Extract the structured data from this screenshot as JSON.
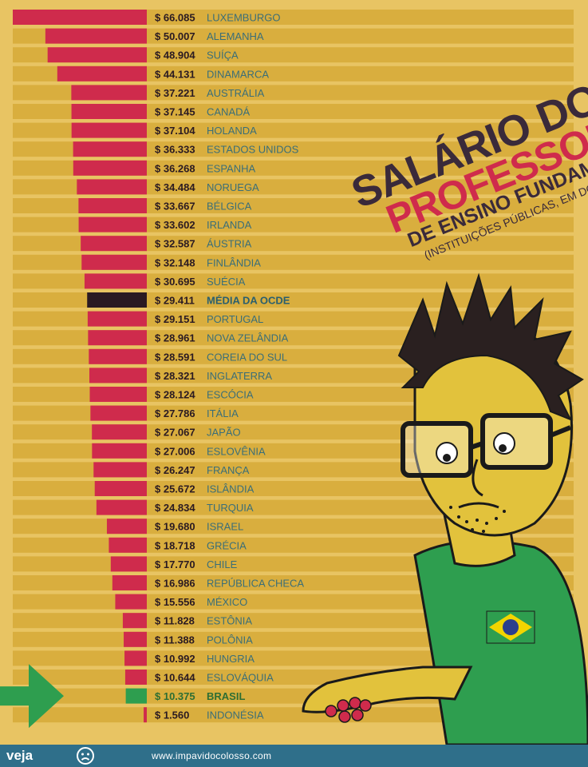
{
  "title": {
    "line1": "SALÁRIO DOS",
    "line2": "PROFESSORES",
    "line3": "DE ENSINO FUNDAMENTAL",
    "line4": "(INSTITUIÇÕES PÚBLICAS, EM DÓLARES, POR ANO)"
  },
  "footer": {
    "brand": "veja",
    "site": "www.impavidocolosso.com"
  },
  "colors": {
    "background": "#e8c463",
    "bar": "#cf2b4c",
    "highlight_ocde": "#2a1a22",
    "highlight_brasil": "#2e9e4f",
    "track": "#d9ae3e"
  },
  "chart_data": {
    "type": "bar",
    "orientation": "horizontal",
    "currency_prefix": "$",
    "categories": [
      "LUXEMBURGO",
      "ALEMANHA",
      "SUÍÇA",
      "DINAMARCA",
      "AUSTRÁLIA",
      "CANADÁ",
      "HOLANDA",
      "ESTADOS UNIDOS",
      "ESPANHA",
      "NORUEGA",
      "BÉLGICA",
      "IRLANDA",
      "ÁUSTRIA",
      "FINLÂNDIA",
      "SUÉCIA",
      "MÉDIA DA OCDE",
      "PORTUGAL",
      "NOVA ZELÂNDIA",
      "COREIA DO SUL",
      "INGLATERRA",
      "ESCÓCIA",
      "ITÁLIA",
      "JAPÃO",
      "ESLOVÊNIA",
      "FRANÇA",
      "ISLÂNDIA",
      "TURQUIA",
      "ISRAEL",
      "GRÉCIA",
      "CHILE",
      "REPÚBLICA CHECA",
      "MÉXICO",
      "ESTÔNIA",
      "POLÔNIA",
      "HUNGRIA",
      "ESLOVÁQUIA",
      "BRASIL",
      "INDONÉSIA"
    ],
    "values": [
      66085,
      50007,
      48904,
      44131,
      37221,
      37145,
      37104,
      36333,
      36268,
      34484,
      33667,
      33602,
      32587,
      32148,
      30695,
      29411,
      29151,
      28961,
      28591,
      28321,
      28124,
      27786,
      27067,
      27006,
      26247,
      25672,
      24834,
      19680,
      18718,
      17770,
      16986,
      15556,
      11828,
      11388,
      10992,
      10644,
      10375,
      1560
    ],
    "value_labels": [
      "66.085",
      "50.007",
      "48.904",
      "44.131",
      "37.221",
      "37.145",
      "37.104",
      "36.333",
      "36.268",
      "34.484",
      "33.667",
      "33.602",
      "32.587",
      "32.148",
      "30.695",
      "29.411",
      "29.151",
      "28.961",
      "28.591",
      "28.321",
      "28.124",
      "27.786",
      "27.067",
      "27.006",
      "26.247",
      "25.672",
      "24.834",
      "19.680",
      "18.718",
      "17.770",
      "16.986",
      "15.556",
      "11.828",
      "11.388",
      "10.992",
      "10.644",
      "10.375",
      "1.560"
    ],
    "highlights": {
      "MÉDIA DA OCDE": "ocde",
      "BRASIL": "brasil"
    }
  }
}
